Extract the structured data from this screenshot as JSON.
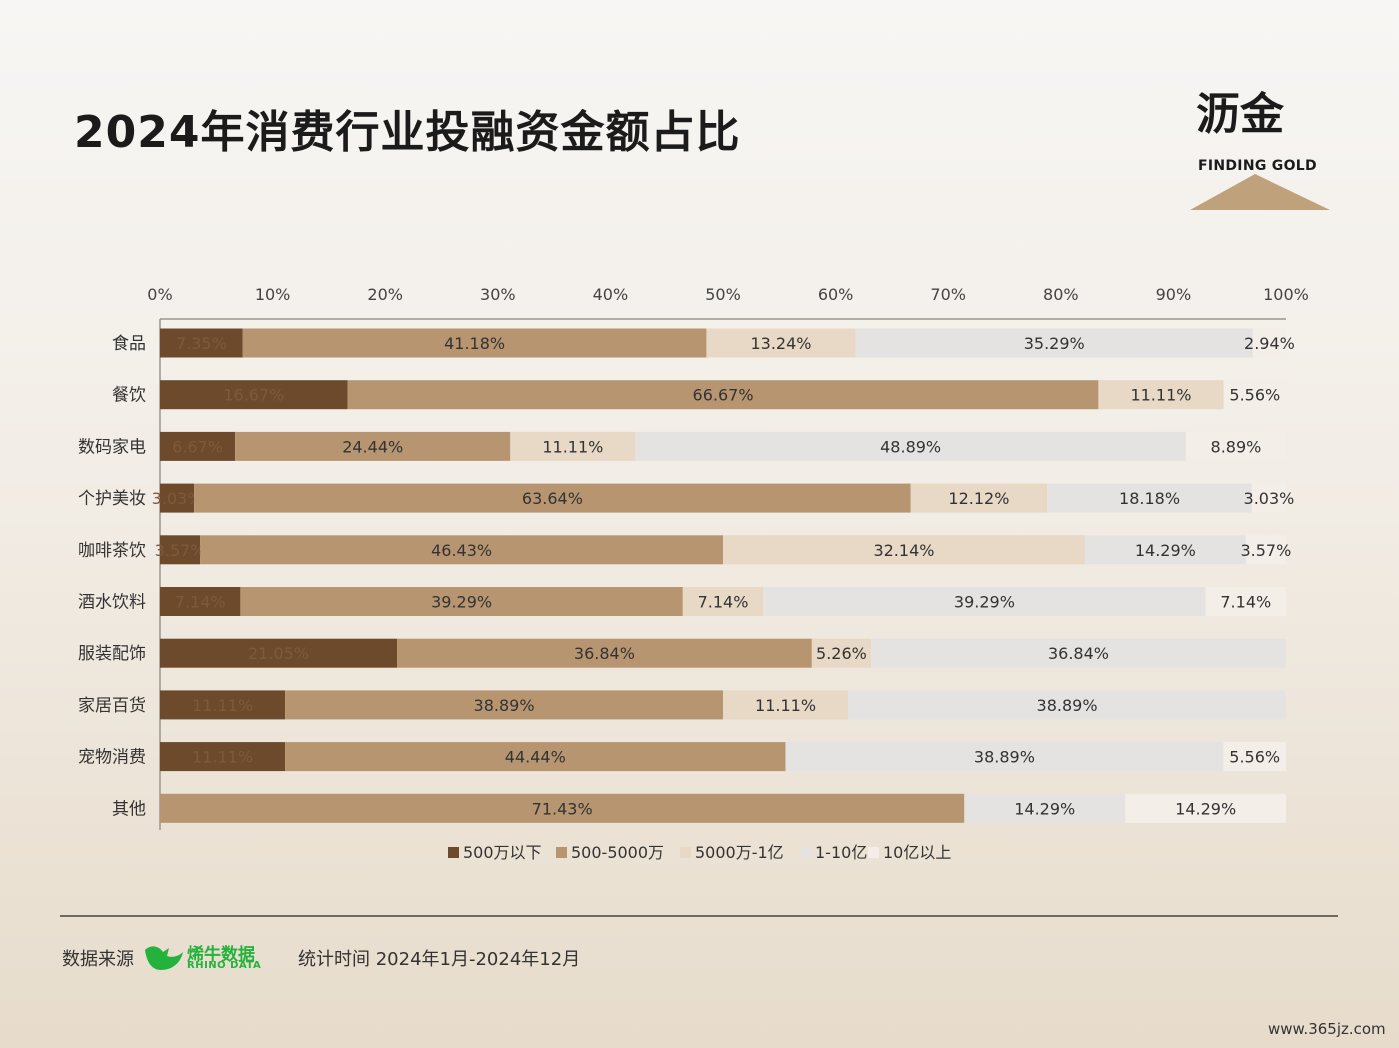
{
  "header": {
    "title": "2024年消费行业投融资金额占比"
  },
  "logo": {
    "title": "沥金",
    "subtitle": "FINDING GOLD"
  },
  "footer": {
    "source_label": "数据来源",
    "rhino_cn": "烯牛数据",
    "rhino_en": "RHINO DATA",
    "time_label": "统计时间 2024年1月-2024年12月"
  },
  "watermark": "www.365jz.com",
  "colors": {
    "series": [
      "#6e4a2c",
      "#b69570",
      "#e8d8c6",
      "#e5e3e1",
      "#f3eee8"
    ],
    "label_dark": "#333333",
    "label_on_dark": "#7d5a3c"
  },
  "chart_data": {
    "type": "bar",
    "orientation": "horizontal",
    "stacked": true,
    "x_ticks": [
      "0%",
      "10%",
      "20%",
      "30%",
      "40%",
      "50%",
      "60%",
      "70%",
      "80%",
      "90%",
      "100%"
    ],
    "xlim": [
      0,
      100
    ],
    "categories": [
      "食品",
      "餐饮",
      "数码家电",
      "个护美妆",
      "咖啡茶饮",
      "酒水饮料",
      "服装配饰",
      "家居百货",
      "宠物消费",
      "其他"
    ],
    "series": [
      {
        "name": "500万以下",
        "values": [
          7.35,
          16.67,
          6.67,
          3.03,
          3.57,
          7.14,
          21.05,
          11.11,
          11.11,
          0
        ]
      },
      {
        "name": "500-5000万",
        "values": [
          41.18,
          66.67,
          24.44,
          63.64,
          46.43,
          39.29,
          36.84,
          38.89,
          44.44,
          71.43
        ]
      },
      {
        "name": "5000万-1亿",
        "values": [
          13.24,
          11.11,
          11.11,
          12.12,
          32.14,
          7.14,
          5.26,
          11.11,
          0,
          0
        ]
      },
      {
        "name": "1-10亿",
        "values": [
          35.29,
          0,
          48.89,
          18.18,
          14.29,
          39.29,
          36.84,
          38.89,
          38.89,
          14.29
        ]
      },
      {
        "name": "10亿以上",
        "values": [
          2.94,
          5.56,
          8.89,
          3.03,
          3.57,
          7.14,
          0,
          0,
          5.56,
          14.29
        ]
      }
    ],
    "data_labels": [
      [
        "7.35%",
        "41.18%",
        "13.24%",
        "35.29%",
        "2.94%"
      ],
      [
        "16.67%",
        "66.67%",
        "11.11%",
        "",
        "5.56%"
      ],
      [
        "6.67%",
        "24.44%",
        "11.11%",
        "48.89%",
        "8.89%"
      ],
      [
        "3.03%",
        "63.64%",
        "12.12%",
        "18.18%",
        "3.03%"
      ],
      [
        "3.57%",
        "46.43%",
        "32.14%",
        "14.29%",
        "3.57%"
      ],
      [
        "7.14%",
        "39.29%",
        "7.14%",
        "39.29%",
        "7.14%"
      ],
      [
        "21.05%",
        "36.84%",
        "5.26%",
        "36.84%",
        ""
      ],
      [
        "11.11%",
        "38.89%",
        "11.11%",
        "38.89%",
        ""
      ],
      [
        "11.11%",
        "44.44%",
        "",
        "38.89%",
        "5.56%"
      ],
      [
        "",
        "71.43%",
        "",
        "14.29%",
        "14.29%"
      ]
    ],
    "legend_position": "bottom"
  }
}
